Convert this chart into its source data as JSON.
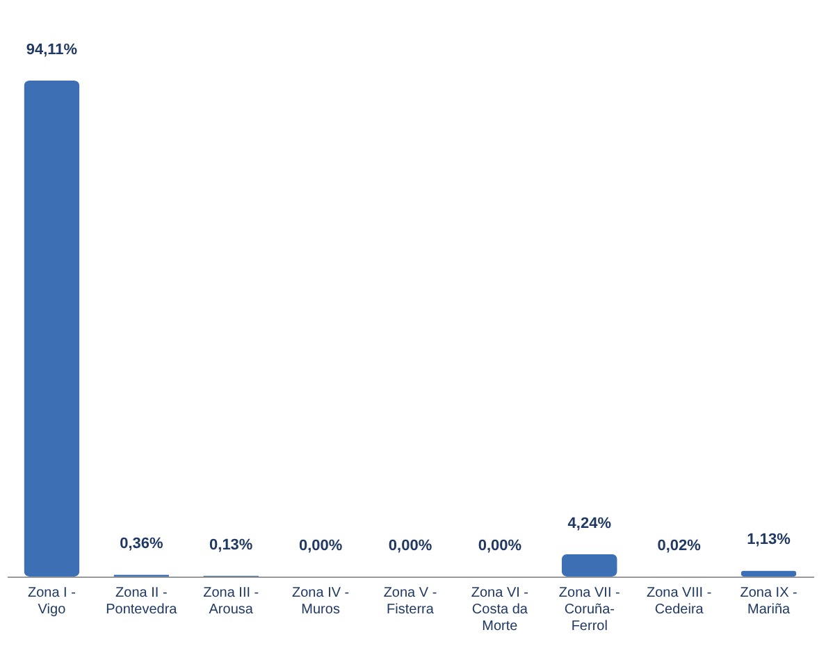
{
  "chart_data": {
    "type": "bar",
    "categories": [
      "Zona I - Vigo",
      "Zona II - Pontevedra",
      "Zona III - Arousa",
      "Zona IV - Muros",
      "Zona V - Fisterra",
      "Zona VI - Costa da Morte",
      "Zona VII - Coruña-Ferrol",
      "Zona VIII - Cedeira",
      "Zona IX - Mariña"
    ],
    "values": [
      94.11,
      0.36,
      0.13,
      0.0,
      0.0,
      0.0,
      4.24,
      0.02,
      1.13
    ],
    "value_labels": [
      "94,11%",
      "0,36%",
      "0,13%",
      "0,00%",
      "0,00%",
      "0,00%",
      "4,24%",
      "0,02%",
      "1,13%"
    ],
    "color": "#3d6fb5"
  }
}
